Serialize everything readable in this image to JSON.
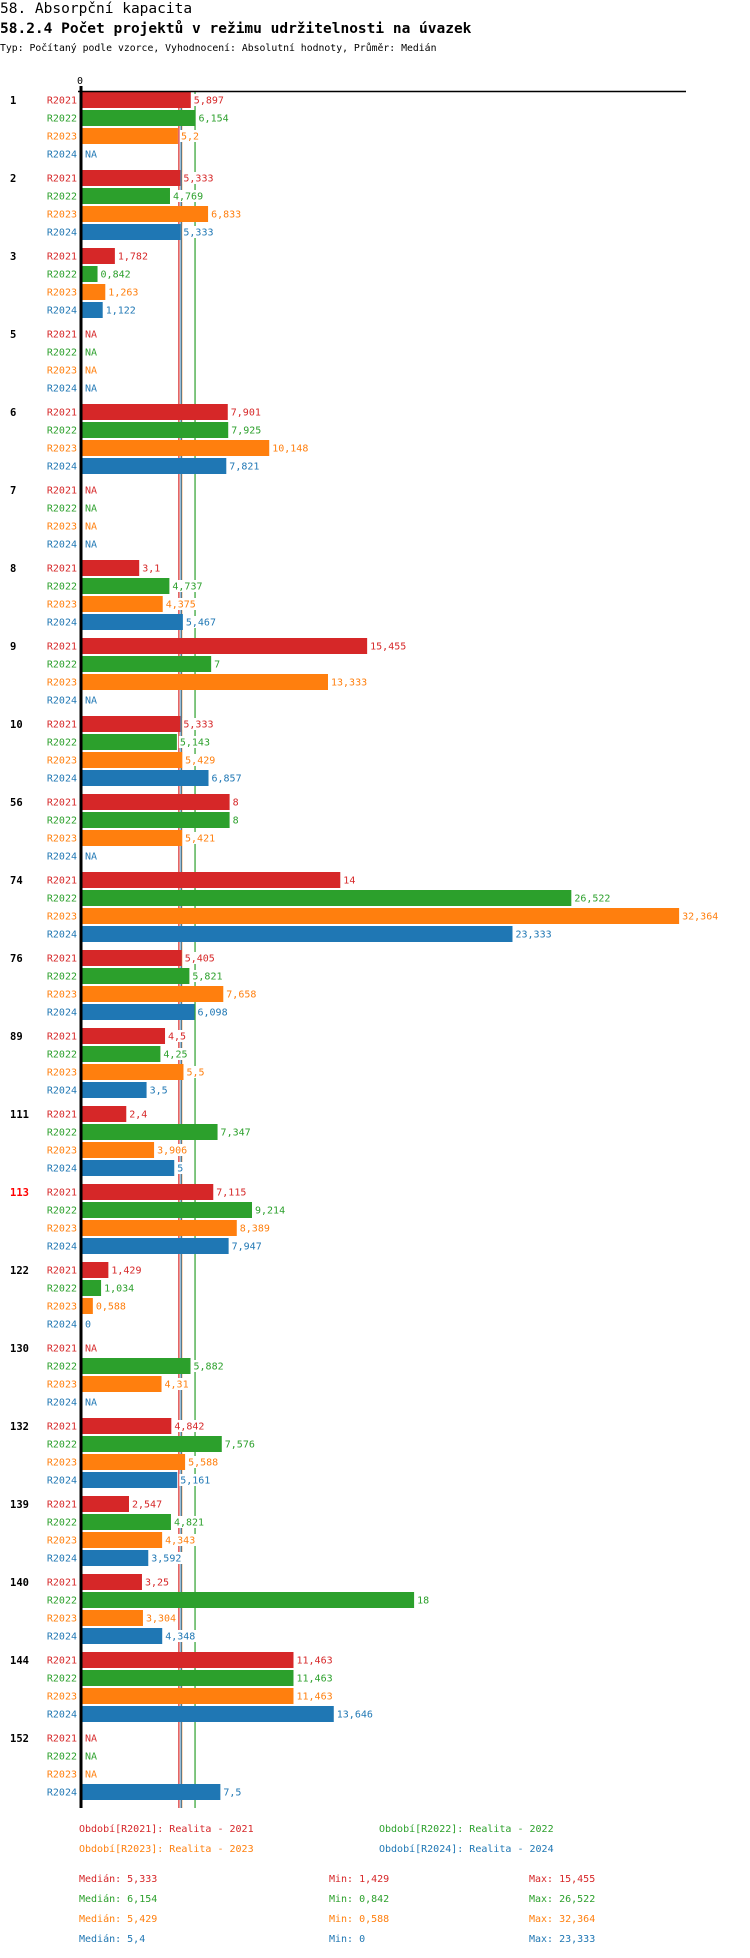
{
  "header": {
    "title": "58. Absorpční kapacita",
    "subtitle": "58.2.4 Počet projektů v režimu udržitelnosti na úvazek",
    "meta": "Typ: Počítaný podle vzorce, Vyhodnocení: Absolutní hodnoty, Průměr: Medián"
  },
  "colors": {
    "R2021": "#d62728",
    "R2022": "#2ca02c",
    "R2023": "#ff7f0e",
    "R2024": "#1f77b4",
    "highlight_group": "#ff0000",
    "axis": "#000000"
  },
  "chart_data": {
    "type": "bar",
    "orientation": "horizontal",
    "title": "58.2.4 Počet projektů v režimu udržitelnosti na úvazek",
    "x_tick_labels": [
      "0"
    ],
    "xlim": [
      0,
      32.364
    ],
    "series_names": [
      "R2021",
      "R2022",
      "R2023",
      "R2024"
    ],
    "groups": [
      {
        "label": "1",
        "values": [
          "5,897",
          "6,154",
          "5,2",
          "NA"
        ]
      },
      {
        "label": "2",
        "values": [
          "5,333",
          "4,769",
          "6,833",
          "5,333"
        ]
      },
      {
        "label": "3",
        "values": [
          "1,782",
          "0,842",
          "1,263",
          "1,122"
        ]
      },
      {
        "label": "5",
        "values": [
          "NA",
          "NA",
          "NA",
          "NA"
        ]
      },
      {
        "label": "6",
        "values": [
          "7,901",
          "7,925",
          "10,148",
          "7,821"
        ]
      },
      {
        "label": "7",
        "values": [
          "NA",
          "NA",
          "NA",
          "NA"
        ]
      },
      {
        "label": "8",
        "values": [
          "3,1",
          "4,737",
          "4,375",
          "5,467"
        ]
      },
      {
        "label": "9",
        "values": [
          "15,455",
          "7",
          "13,333",
          "NA"
        ]
      },
      {
        "label": "10",
        "values": [
          "5,333",
          "5,143",
          "5,429",
          "6,857"
        ]
      },
      {
        "label": "56",
        "values": [
          "8",
          "8",
          "5,421",
          "NA"
        ]
      },
      {
        "label": "74",
        "values": [
          "14",
          "26,522",
          "32,364",
          "23,333"
        ]
      },
      {
        "label": "76",
        "values": [
          "5,405",
          "5,821",
          "7,658",
          "6,098"
        ]
      },
      {
        "label": "89",
        "values": [
          "4,5",
          "4,25",
          "5,5",
          "3,5"
        ]
      },
      {
        "label": "111",
        "values": [
          "2,4",
          "7,347",
          "3,906",
          "5"
        ]
      },
      {
        "label": "113",
        "values": [
          "7,115",
          "9,214",
          "8,389",
          "7,947"
        ],
        "highlight": true
      },
      {
        "label": "122",
        "values": [
          "1,429",
          "1,034",
          "0,588",
          "0"
        ]
      },
      {
        "label": "130",
        "values": [
          "NA",
          "5,882",
          "4,31",
          "NA"
        ]
      },
      {
        "label": "132",
        "values": [
          "4,842",
          "7,576",
          "5,588",
          "5,161"
        ]
      },
      {
        "label": "139",
        "values": [
          "2,547",
          "4,821",
          "4,343",
          "3,592"
        ]
      },
      {
        "label": "140",
        "values": [
          "3,25",
          "18",
          "3,304",
          "4,348"
        ]
      },
      {
        "label": "144",
        "values": [
          "11,463",
          "11,463",
          "11,463",
          "13,646"
        ]
      },
      {
        "label": "152",
        "values": [
          "NA",
          "NA",
          "NA",
          "7,5"
        ]
      }
    ],
    "median_lines": {
      "R2021": 5.333,
      "R2022": 6.154,
      "R2023": 5.429,
      "R2024": 5.4
    }
  },
  "legend": [
    {
      "series": "R2021",
      "text": "Období[R2021]: Realita - 2021"
    },
    {
      "series": "R2022",
      "text": "Období[R2022]: Realita - 2022"
    },
    {
      "series": "R2023",
      "text": "Období[R2023]: Realita - 2023"
    },
    {
      "series": "R2024",
      "text": "Období[R2024]: Realita - 2024"
    }
  ],
  "stats": [
    {
      "series": "R2021",
      "median": "Medián: 5,333",
      "min": "Min: 1,429",
      "max": "Max: 15,455"
    },
    {
      "series": "R2022",
      "median": "Medián: 6,154",
      "min": "Min: 0,842",
      "max": "Max: 26,522"
    },
    {
      "series": "R2023",
      "median": "Medián: 5,429",
      "min": "Min: 0,588",
      "max": "Max: 32,364"
    },
    {
      "series": "R2024",
      "median": "Medián: 5,4",
      "min": "Min: 0",
      "max": "Max: 23,333"
    }
  ]
}
